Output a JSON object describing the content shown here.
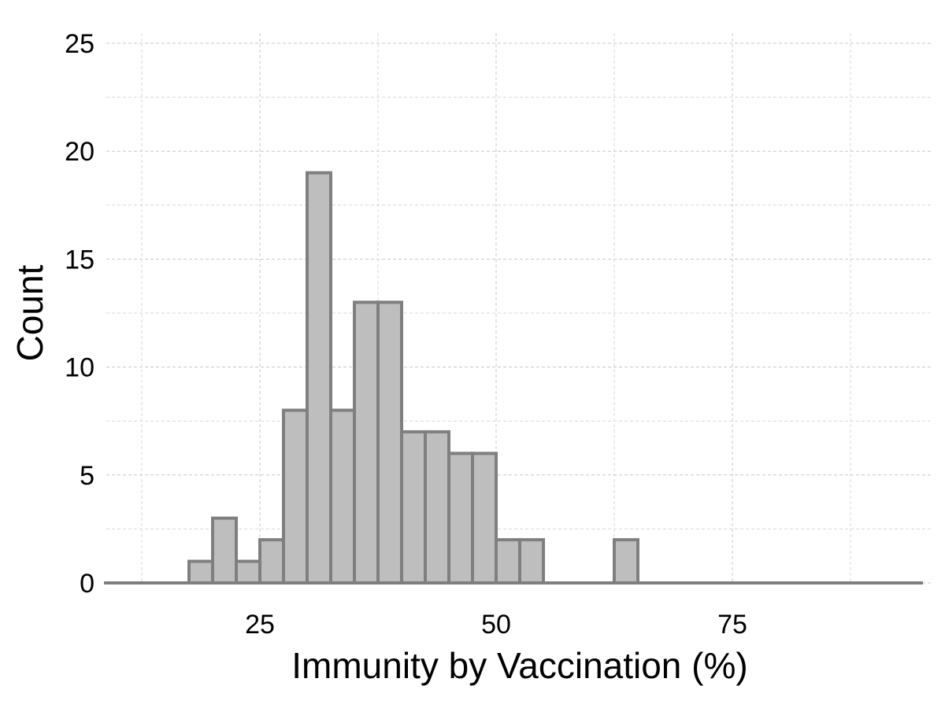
{
  "chart_data": {
    "type": "bar",
    "subtype": "histogram",
    "xlabel": "Immunity by Vaccination (%)",
    "ylabel": "Count",
    "xlim": [
      12.5,
      95
    ],
    "ylim": [
      0,
      25
    ],
    "x_ticks": [
      25,
      50,
      75
    ],
    "y_ticks": [
      0,
      5,
      10,
      15,
      20,
      25
    ],
    "grid": true,
    "bin_width": 2.5,
    "bins": [
      {
        "start": 17.5,
        "end": 20.0,
        "count": 1
      },
      {
        "start": 20.0,
        "end": 22.5,
        "count": 3
      },
      {
        "start": 22.5,
        "end": 25.0,
        "count": 1
      },
      {
        "start": 25.0,
        "end": 27.5,
        "count": 2
      },
      {
        "start": 27.5,
        "end": 30.0,
        "count": 8
      },
      {
        "start": 30.0,
        "end": 32.5,
        "count": 19
      },
      {
        "start": 32.5,
        "end": 35.0,
        "count": 8
      },
      {
        "start": 35.0,
        "end": 37.5,
        "count": 13
      },
      {
        "start": 37.5,
        "end": 40.0,
        "count": 13
      },
      {
        "start": 40.0,
        "end": 42.5,
        "count": 7
      },
      {
        "start": 42.5,
        "end": 45.0,
        "count": 7
      },
      {
        "start": 45.0,
        "end": 47.5,
        "count": 6
      },
      {
        "start": 47.5,
        "end": 50.0,
        "count": 6
      },
      {
        "start": 50.0,
        "end": 52.5,
        "count": 2
      },
      {
        "start": 52.5,
        "end": 55.0,
        "count": 2
      },
      {
        "start": 55.0,
        "end": 57.5,
        "count": 0
      },
      {
        "start": 57.5,
        "end": 60.0,
        "count": 0
      },
      {
        "start": 60.0,
        "end": 62.5,
        "count": 0
      },
      {
        "start": 62.5,
        "end": 65.0,
        "count": 2
      },
      {
        "start": 65.0,
        "end": 67.5,
        "count": 0
      },
      {
        "start": 67.5,
        "end": 70.0,
        "count": 0
      },
      {
        "start": 70.0,
        "end": 72.5,
        "count": 0
      },
      {
        "start": 72.5,
        "end": 75.0,
        "count": 0
      },
      {
        "start": 75.0,
        "end": 77.5,
        "count": 0
      },
      {
        "start": 77.5,
        "end": 80.0,
        "count": 0
      },
      {
        "start": 80.0,
        "end": 82.5,
        "count": 0
      },
      {
        "start": 82.5,
        "end": 85.0,
        "count": 0
      },
      {
        "start": 85.0,
        "end": 87.5,
        "count": 0
      },
      {
        "start": 87.5,
        "end": 90.0,
        "count": 0
      },
      {
        "start": 90.0,
        "end": 92.5,
        "count": 0
      },
      {
        "start": 92.5,
        "end": 95.0,
        "count": 0
      }
    ],
    "colors": {
      "bar_fill": "#bebebe",
      "bar_outline": "#7f7f7f"
    }
  }
}
